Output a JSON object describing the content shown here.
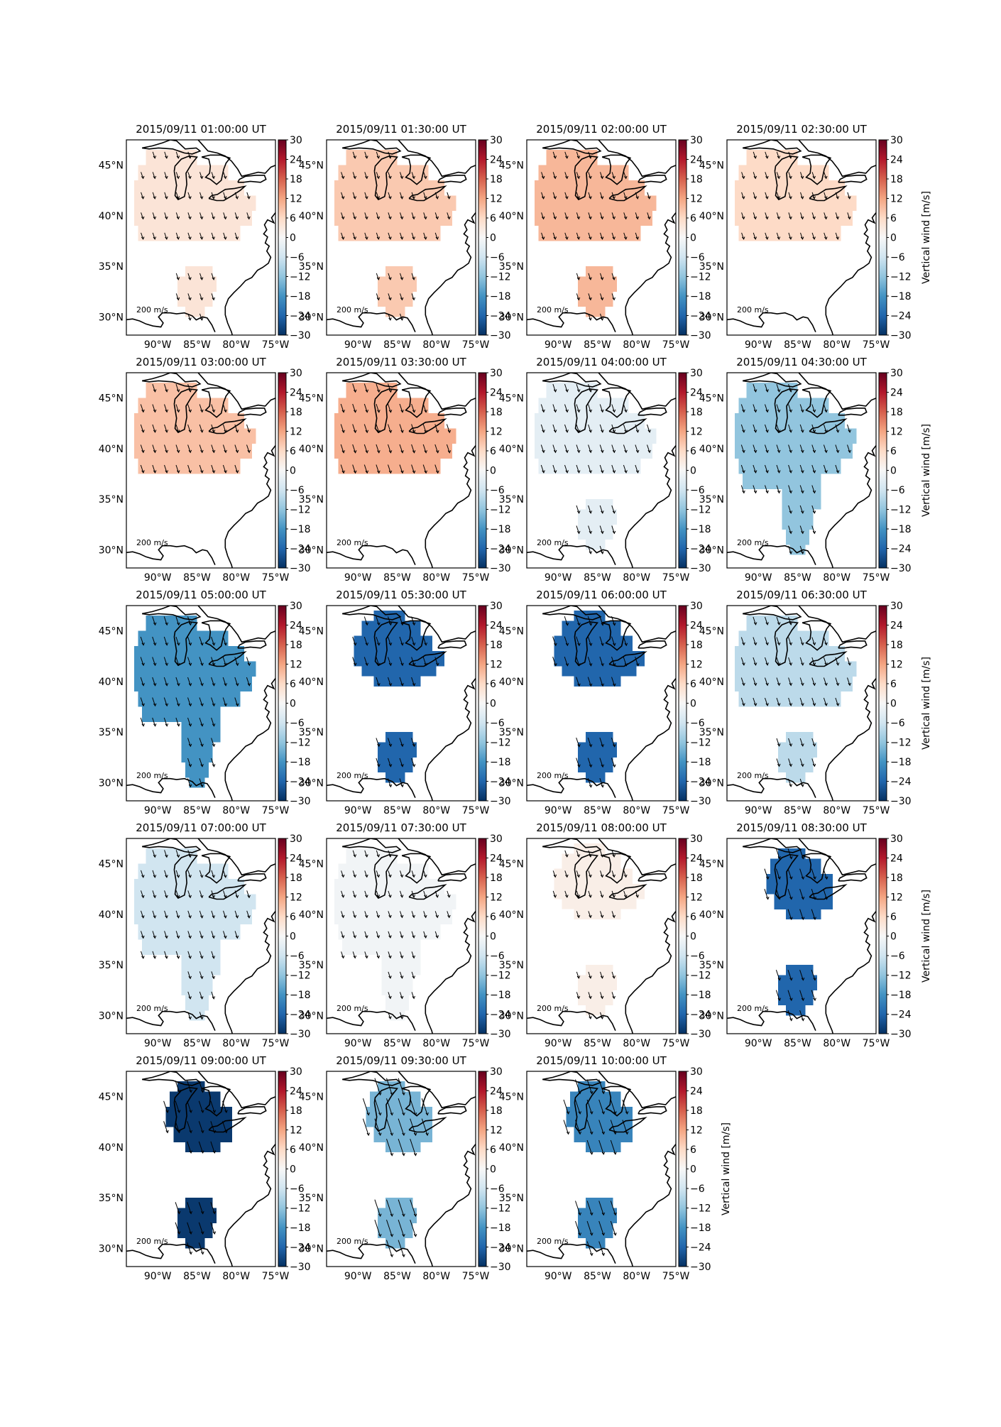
{
  "figure": {
    "colorbar_label": "Vertical wind [m/s]",
    "colorbar_ticks": [
      "30",
      "24",
      "18",
      "12",
      "6",
      "0",
      "−6",
      "−12",
      "−18",
      "−24",
      "−30"
    ],
    "colorbar_range": [
      -30,
      30
    ],
    "lat_labels": [
      "45°N",
      "40°N",
      "35°N",
      "30°N"
    ],
    "lon_labels": [
      "90°W",
      "85°W",
      "80°W",
      "75°W"
    ],
    "scale_label": "200 m/s",
    "colormap": "RdBu_r",
    "colors": {
      "coast": "#000000",
      "arrow": "#000000",
      "frame": "#000000"
    }
  },
  "panels": [
    {
      "title": "2015/09/11 01:00:00 UT",
      "wind": 4,
      "south": true,
      "north": "L",
      "ext": false,
      "scale": 1.0
    },
    {
      "title": "2015/09/11 01:30:00 UT",
      "wind": 8,
      "south": true,
      "north": "L",
      "ext": false,
      "scale": 1.0
    },
    {
      "title": "2015/09/11 02:00:00 UT",
      "wind": 10,
      "south": true,
      "north": "L",
      "ext": false,
      "scale": 1.0
    },
    {
      "title": "2015/09/11 02:30:00 UT",
      "wind": 6,
      "south": false,
      "north": "L",
      "ext": false,
      "scale": 1.0
    },
    {
      "title": "2015/09/11 03:00:00 UT",
      "wind": 9,
      "south": false,
      "north": "L",
      "ext": false,
      "scale": 1.2
    },
    {
      "title": "2015/09/11 03:30:00 UT",
      "wind": 11,
      "south": false,
      "north": "L",
      "ext": false,
      "scale": 1.3
    },
    {
      "title": "2015/09/11 04:00:00 UT",
      "wind": -3,
      "south": true,
      "north": "L",
      "ext": false,
      "scale": 1.2
    },
    {
      "title": "2015/09/11 04:30:00 UT",
      "wind": -12,
      "south": true,
      "north": "L",
      "ext": true,
      "scale": 1.2
    },
    {
      "title": "2015/09/11 05:00:00 UT",
      "wind": -18,
      "south": true,
      "north": "L",
      "ext": true,
      "scale": 1.3
    },
    {
      "title": "2015/09/11 05:30:00 UT",
      "wind": -24,
      "south": true,
      "north": "M",
      "ext": false,
      "scale": 1.3
    },
    {
      "title": "2015/09/11 06:00:00 UT",
      "wind": -24,
      "south": true,
      "north": "M",
      "ext": false,
      "scale": 1.4
    },
    {
      "title": "2015/09/11 06:30:00 UT",
      "wind": -8,
      "south": true,
      "north": "L",
      "ext": false,
      "scale": 1.2
    },
    {
      "title": "2015/09/11 07:00:00 UT",
      "wind": -6,
      "south": true,
      "north": "L",
      "ext": true,
      "scale": 1.1
    },
    {
      "title": "2015/09/11 07:30:00 UT",
      "wind": -1,
      "south": true,
      "north": "L",
      "ext": true,
      "scale": 1.0
    },
    {
      "title": "2015/09/11 08:00:00 UT",
      "wind": 2,
      "south": true,
      "north": "M",
      "ext": false,
      "scale": 1.0
    },
    {
      "title": "2015/09/11 08:30:00 UT",
      "wind": -24,
      "south": true,
      "north": "S",
      "ext": false,
      "scale": 1.6
    },
    {
      "title": "2015/09/11 09:00:00 UT",
      "wind": -29,
      "south": true,
      "north": "S",
      "ext": false,
      "scale": 1.8
    },
    {
      "title": "2015/09/11 09:30:00 UT",
      "wind": -14,
      "south": true,
      "north": "S",
      "ext": false,
      "scale": 2.6
    },
    {
      "title": "2015/09/11 10:00:00 UT",
      "wind": -20,
      "south": true,
      "north": "S",
      "ext": false,
      "scale": 2.2
    }
  ]
}
